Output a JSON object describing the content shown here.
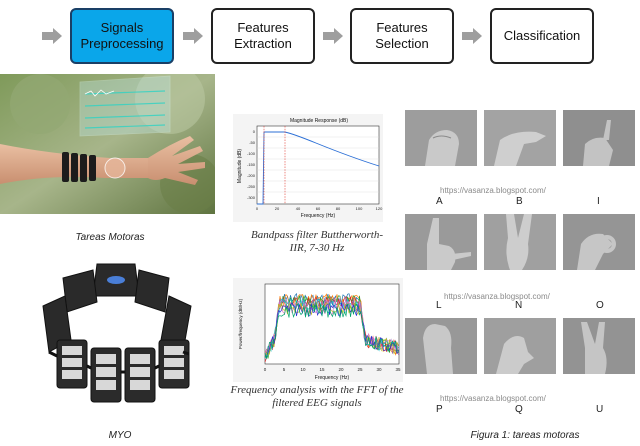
{
  "pipeline": {
    "stages": [
      {
        "label": "Signals\nPreprocessing",
        "active": true
      },
      {
        "label": "Features\nExtraction",
        "active": false
      },
      {
        "label": "Features\nSelection",
        "active": false
      },
      {
        "label": "Classification",
        "active": false
      }
    ],
    "active_color": "#0aa6ea",
    "arrow_color": "#9e9e9e"
  },
  "captions": {
    "arm": "Tareas Motoras",
    "myo": "MYO",
    "filter": "Bandpass filter Buttherworth-\nIIR, 7-30 Hz",
    "fft": "Frequency analysis with the FFT of the\nfiltered EEG signals",
    "hands": "Figura 1: tareas motoras"
  },
  "filter_plot": {
    "title": "Magnitude Response (dB)",
    "xlabel": "Frequency (Hz)",
    "ylabel": "Magnitude (dB)",
    "xticks": [
      "0",
      "20",
      "40",
      "60",
      "80",
      "100",
      "120"
    ],
    "yticks": [
      "0",
      "-50",
      "-100",
      "-150",
      "-200",
      "-250",
      "-300"
    ]
  },
  "fft_plot": {
    "xlabel": "Frequency (Hz)",
    "ylabel": "Power/frequency (dB/Hz)",
    "xticks": [
      "0",
      "5",
      "10",
      "15",
      "20",
      "25",
      "30",
      "35"
    ]
  },
  "hands": {
    "watermark": "https://vasanza.blogspot.com/",
    "letters": [
      "A",
      "B",
      "I",
      "L",
      "N",
      "O",
      "P",
      "Q",
      "U"
    ]
  }
}
